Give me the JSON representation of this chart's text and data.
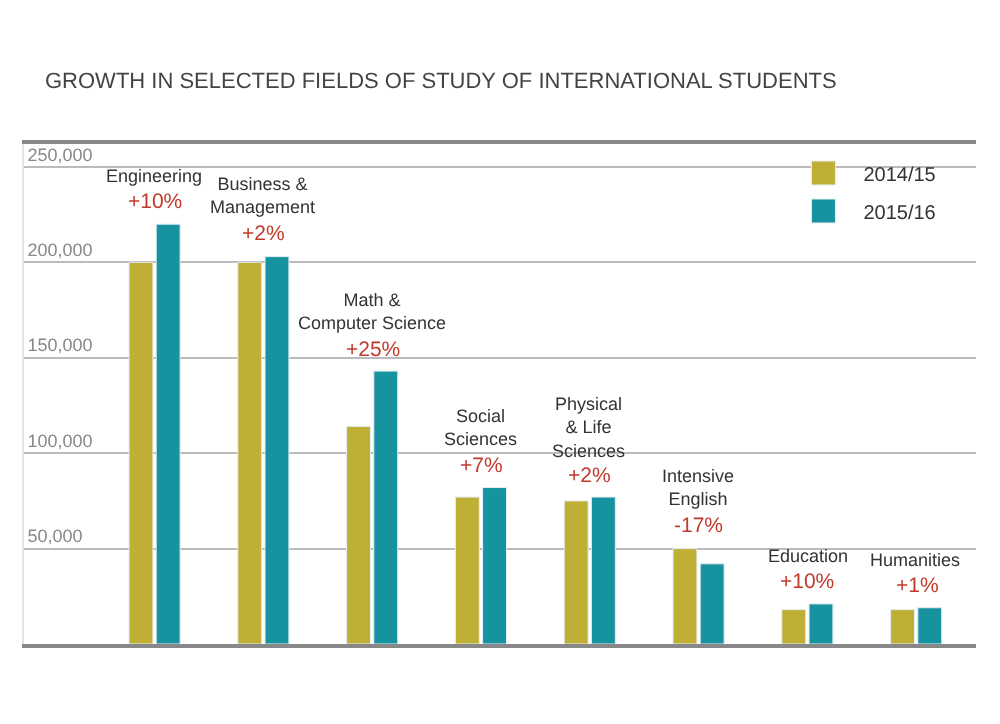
{
  "chart_data": {
    "type": "bar",
    "title": "GROWTH IN SELECTED FIELDS OF STUDY OF INTERNATIONAL STUDENTS",
    "categories": [
      "Engineering",
      "Business &\nManagement",
      "Math &\nComputer Science",
      "Social\nSciences",
      "Physical\n& Life\nSciences",
      "Intensive\nEnglish",
      "Education",
      "Humanities"
    ],
    "series": [
      {
        "name": "2014/15",
        "color": "#bfb035",
        "values": [
          200000,
          200000,
          114000,
          77000,
          75000,
          50000,
          18000,
          18000
        ]
      },
      {
        "name": "2015/16",
        "color": "#17939f",
        "values": [
          220000,
          203000,
          143000,
          82000,
          77000,
          42000,
          21000,
          19000
        ]
      }
    ],
    "annotations": [
      "+10%",
      "+2%",
      "+25%",
      "+7%",
      "+2%",
      "-17%",
      "+10%",
      "+1%"
    ],
    "ylim": [
      0,
      262000
    ],
    "yticks": [
      {
        "value": 50000,
        "label": "50,000"
      },
      {
        "value": 100000,
        "label": "100,000"
      },
      {
        "value": 150000,
        "label": "150,000"
      },
      {
        "value": 200000,
        "label": "200,000"
      },
      {
        "value": 250000,
        "label": "250,000"
      }
    ],
    "grid": "y",
    "legend": "top right",
    "tick_labels": "y"
  }
}
